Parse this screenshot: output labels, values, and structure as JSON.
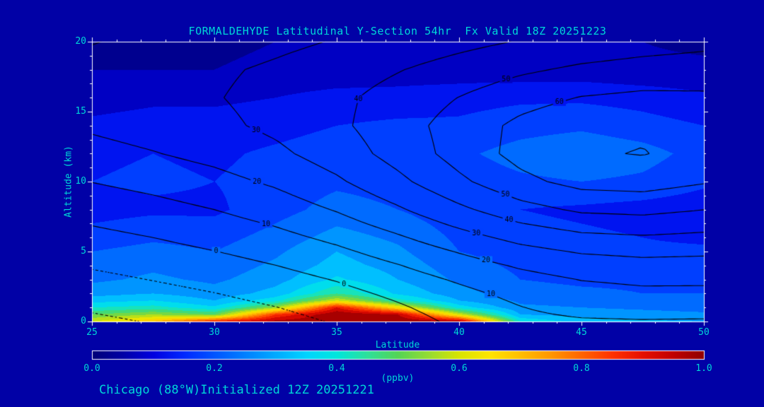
{
  "page": {
    "background": "#0101A6",
    "text_color": "#00D7D7",
    "frame_color": "#FFFFFF",
    "contour_line_color": "#000000"
  },
  "caption": "Chicago (88°W)Initialized 12Z 20251221",
  "chart_data": {
    "type": "heatmap",
    "title": "FORMALDEHYDE Latitudinal Y-Section 54hr  Fx Valid 18Z 20251223",
    "xlabel": "Latitude",
    "ylabel": "Altitude (km)",
    "colorbar_label": "(ppbv)",
    "xlim": [
      25,
      50
    ],
    "ylim": [
      0,
      20
    ],
    "x_ticks": [
      25,
      30,
      35,
      40,
      45,
      50
    ],
    "y_ticks": [
      0,
      5,
      10,
      15,
      20
    ],
    "colorbar_ticks": [
      "0.0",
      "0.2",
      "0.4",
      "0.6",
      "0.8",
      "1.0"
    ],
    "colorbar_range": [
      0.0,
      1.0
    ],
    "fill_step": 0.05,
    "colormap": [
      {
        "v": 0.0,
        "c": "#000078"
      },
      {
        "v": 0.05,
        "c": "#0000A6"
      },
      {
        "v": 0.1,
        "c": "#0000E0"
      },
      {
        "v": 0.15,
        "c": "#0028FF"
      },
      {
        "v": 0.2,
        "c": "#0055FF"
      },
      {
        "v": 0.25,
        "c": "#0080FF"
      },
      {
        "v": 0.3,
        "c": "#00AAFF"
      },
      {
        "v": 0.35,
        "c": "#00D4FF"
      },
      {
        "v": 0.4,
        "c": "#00E6DC"
      },
      {
        "v": 0.45,
        "c": "#2EE09A"
      },
      {
        "v": 0.5,
        "c": "#55D455"
      },
      {
        "v": 0.55,
        "c": "#96DC32"
      },
      {
        "v": 0.6,
        "c": "#D9E400"
      },
      {
        "v": 0.65,
        "c": "#FFE400"
      },
      {
        "v": 0.7,
        "c": "#FFBE00"
      },
      {
        "v": 0.75,
        "c": "#FF9600"
      },
      {
        "v": 0.8,
        "c": "#FF6400"
      },
      {
        "v": 0.85,
        "c": "#FF3200"
      },
      {
        "v": 0.9,
        "c": "#E60F00"
      },
      {
        "v": 0.95,
        "c": "#C00000"
      },
      {
        "v": 1.0,
        "c": "#8F0000"
      }
    ],
    "fill_field": {
      "name": "formaldehyde_ppbv",
      "lats": [
        25,
        27.5,
        30,
        32.5,
        35,
        37.5,
        40,
        42.5,
        45,
        47.5,
        50
      ],
      "levels_km": [
        0,
        0.5,
        1,
        1.5,
        2,
        3,
        4,
        5,
        6,
        8,
        10,
        12,
        14,
        16,
        18,
        20
      ],
      "values": [
        [
          0.6,
          0.7,
          0.88,
          0.97,
          1.0,
          1.0,
          0.97,
          0.4,
          0.33,
          0.31,
          0.3
        ],
        [
          0.5,
          0.55,
          0.5,
          0.85,
          1.0,
          0.95,
          0.6,
          0.3,
          0.28,
          0.27,
          0.26
        ],
        [
          0.4,
          0.42,
          0.36,
          0.55,
          0.9,
          0.65,
          0.38,
          0.26,
          0.25,
          0.24,
          0.23
        ],
        [
          0.33,
          0.35,
          0.3,
          0.38,
          0.6,
          0.42,
          0.3,
          0.24,
          0.23,
          0.22,
          0.21
        ],
        [
          0.28,
          0.3,
          0.27,
          0.32,
          0.45,
          0.34,
          0.27,
          0.22,
          0.21,
          0.2,
          0.2
        ],
        [
          0.24,
          0.26,
          0.24,
          0.28,
          0.36,
          0.3,
          0.24,
          0.2,
          0.19,
          0.19,
          0.18
        ],
        [
          0.22,
          0.24,
          0.22,
          0.26,
          0.32,
          0.28,
          0.22,
          0.19,
          0.18,
          0.18,
          0.17
        ],
        [
          0.2,
          0.22,
          0.2,
          0.24,
          0.3,
          0.26,
          0.2,
          0.18,
          0.17,
          0.16,
          0.16
        ],
        [
          0.17,
          0.19,
          0.18,
          0.22,
          0.27,
          0.24,
          0.19,
          0.17,
          0.16,
          0.15,
          0.14
        ],
        [
          0.13,
          0.14,
          0.14,
          0.18,
          0.22,
          0.2,
          0.17,
          0.15,
          0.14,
          0.13,
          0.12
        ],
        [
          0.15,
          0.16,
          0.15,
          0.17,
          0.19,
          0.18,
          0.17,
          0.19,
          0.2,
          0.19,
          0.16
        ],
        [
          0.14,
          0.15,
          0.14,
          0.16,
          0.18,
          0.19,
          0.19,
          0.22,
          0.24,
          0.22,
          0.18
        ],
        [
          0.11,
          0.12,
          0.12,
          0.13,
          0.15,
          0.16,
          0.16,
          0.18,
          0.19,
          0.17,
          0.15
        ],
        [
          0.08,
          0.09,
          0.09,
          0.1,
          0.12,
          0.12,
          0.13,
          0.14,
          0.14,
          0.13,
          0.11
        ],
        [
          0.05,
          0.05,
          0.05,
          0.06,
          0.06,
          0.07,
          0.07,
          0.07,
          0.07,
          0.06,
          0.06
        ],
        [
          0.04,
          0.04,
          0.04,
          0.05,
          0.05,
          0.05,
          0.05,
          0.05,
          0.05,
          0.05,
          0.04
        ]
      ]
    },
    "contour_field": {
      "name": "overlay_contours",
      "lats": [
        25,
        27.5,
        30,
        32.5,
        35,
        37.5,
        40,
        42.5,
        45,
        47.5,
        50
      ],
      "levels_km": [
        0,
        1,
        2,
        3,
        4,
        5,
        6,
        8,
        10,
        12,
        14,
        16,
        18,
        20
      ],
      "contour_levels": [
        -20,
        -10,
        0,
        10,
        20,
        30,
        40,
        50,
        60,
        70
      ],
      "labeled_levels": [
        0,
        10,
        20,
        30,
        40,
        50,
        60
      ],
      "values": [
        [
          -22.0,
          -19.4,
          -16.6,
          -13.3,
          -9.2,
          -4.0,
          1.9,
          7.4,
          8.8,
          9.2,
          8.9
        ],
        [
          -18.8,
          -16.2,
          -13.4,
          -10.2,
          -6.2,
          -1.2,
          4.4,
          9.7,
          13.3,
          14.8,
          14.6
        ],
        [
          -15.6,
          -13.0,
          -10.2,
          -6.9,
          -2.9,
          2.0,
          7.5,
          12.7,
          16.4,
          17.9,
          17.8
        ],
        [
          -12.4,
          -9.7,
          -6.9,
          -3.6,
          0.5,
          5.6,
          11.2,
          16.5,
          20.3,
          21.8,
          21.7
        ],
        [
          -9.1,
          -6.5,
          -3.6,
          -0.1,
          4.2,
          9.6,
          15.6,
          21.2,
          25.1,
          26.7,
          26.4
        ],
        [
          -5.9,
          -3.2,
          -0.2,
          3.4,
          8.1,
          14.0,
          20.6,
          26.8,
          30.9,
          32.4,
          31.7
        ],
        [
          -2.7,
          0.0,
          3.2,
          7.1,
          12.2,
          18.8,
          26.2,
          33.0,
          37.5,
          38.9,
          37.6
        ],
        [
          3.7,
          6.6,
          10.0,
          14.5,
          20.7,
          28.7,
          37.9,
          46.3,
          51.6,
          52.7,
          50.1
        ],
        [
          10.2,
          13.1,
          16.7,
          21.6,
          28.5,
          37.6,
          48.0,
          57.4,
          63.3,
          64.2,
          60.8
        ],
        [
          16.6,
          19.5,
          23.1,
          27.9,
          34.7,
          43.7,
          53.9,
          63.2,
          69.0,
          70.4,
          66.7
        ],
        [
          21.5,
          24.4,
          27.7,
          32.1,
          38.0,
          45.7,
          54.3,
          62.3,
          67.4,
          68.7,
          66.6
        ],
        [
          23.7,
          26.4,
          29.4,
          33.2,
          37.9,
          43.7,
          50.2,
          56.2,
          60.4,
          62.1,
          61.6
        ],
        [
          23.0,
          25.7,
          28.4,
          31.6,
          35.2,
          39.5,
          44.0,
          48.4,
          51.8,
          53.8,
          54.8
        ],
        [
          19.6,
          22.2,
          24.8,
          27.6,
          30.6,
          33.8,
          37.2,
          40.5,
          43.4,
          45.7,
          47.5
        ]
      ]
    }
  }
}
